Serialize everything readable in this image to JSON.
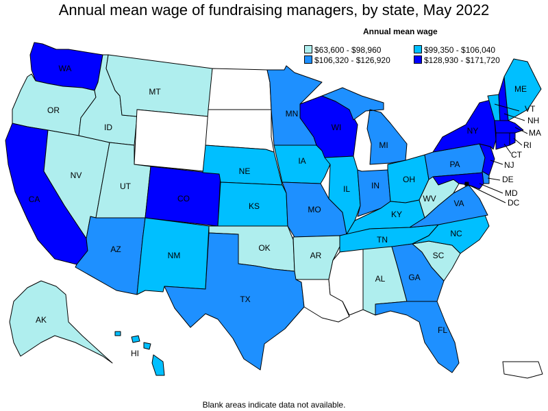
{
  "title": "Annual mean wage of fundraising managers, by state, May 2022",
  "legend": {
    "title": "Annual mean wage",
    "items": [
      {
        "label": "$63,600 - $98,960",
        "color": "#afeeee"
      },
      {
        "label": "$99,350 - $106,040",
        "color": "#00bfff"
      },
      {
        "label": "$106,320 - $126,920",
        "color": "#1e90ff"
      },
      {
        "label": "$128,930 - $171,720",
        "color": "#0000ff"
      }
    ]
  },
  "no_data_color": "#ffffff",
  "footnote": "Blank areas indicate data not available.",
  "states": {
    "WA": {
      "label": "WA",
      "bin": 3
    },
    "OR": {
      "label": "OR",
      "bin": 0
    },
    "CA": {
      "label": "CA",
      "bin": 3
    },
    "NV": {
      "label": "NV",
      "bin": 0
    },
    "ID": {
      "label": "ID",
      "bin": 0
    },
    "MT": {
      "label": "MT",
      "bin": 0
    },
    "WY": {
      "label": "",
      "bin": null
    },
    "UT": {
      "label": "UT",
      "bin": 0
    },
    "AZ": {
      "label": "AZ",
      "bin": 2
    },
    "CO": {
      "label": "CO",
      "bin": 3
    },
    "NM": {
      "label": "NM",
      "bin": 1
    },
    "ND": {
      "label": "",
      "bin": null
    },
    "SD": {
      "label": "",
      "bin": null
    },
    "NE": {
      "label": "NE",
      "bin": 1
    },
    "KS": {
      "label": "KS",
      "bin": 1
    },
    "OK": {
      "label": "OK",
      "bin": 0
    },
    "TX": {
      "label": "TX",
      "bin": 2
    },
    "MN": {
      "label": "MN",
      "bin": 2
    },
    "IA": {
      "label": "IA",
      "bin": 1
    },
    "MO": {
      "label": "MO",
      "bin": 2
    },
    "AR": {
      "label": "AR",
      "bin": 0
    },
    "LA": {
      "label": "",
      "bin": null
    },
    "WI": {
      "label": "WI",
      "bin": 3
    },
    "IL": {
      "label": "IL",
      "bin": 1
    },
    "MI": {
      "label": "MI",
      "bin": 2
    },
    "IN": {
      "label": "IN",
      "bin": 2
    },
    "OH": {
      "label": "OH",
      "bin": 1
    },
    "KY": {
      "label": "KY",
      "bin": 1
    },
    "TN": {
      "label": "TN",
      "bin": 1
    },
    "MS": {
      "label": "",
      "bin": null
    },
    "AL": {
      "label": "AL",
      "bin": 0
    },
    "GA": {
      "label": "GA",
      "bin": 2
    },
    "FL": {
      "label": "FL",
      "bin": 2
    },
    "SC": {
      "label": "SC",
      "bin": 0
    },
    "NC": {
      "label": "NC",
      "bin": 1
    },
    "VA": {
      "label": "VA",
      "bin": 2
    },
    "WV": {
      "label": "WV",
      "bin": 0
    },
    "PA": {
      "label": "PA",
      "bin": 2
    },
    "NY": {
      "label": "NY",
      "bin": 3
    },
    "VT": {
      "label": "VT",
      "bin": 1
    },
    "NH": {
      "label": "NH",
      "bin": 3
    },
    "ME": {
      "label": "ME",
      "bin": 1
    },
    "MA": {
      "label": "MA",
      "bin": 3
    },
    "RI": {
      "label": "RI",
      "bin": 3
    },
    "CT": {
      "label": "CT",
      "bin": 3
    },
    "NJ": {
      "label": "NJ",
      "bin": 3
    },
    "DE": {
      "label": "DE",
      "bin": 2
    },
    "MD": {
      "label": "MD",
      "bin": 3
    },
    "DC": {
      "label": "DC",
      "bin": 3
    },
    "AK": {
      "label": "AK",
      "bin": 0
    },
    "HI": {
      "label": "HI",
      "bin": 1
    },
    "PR": {
      "label": "",
      "bin": null
    }
  }
}
